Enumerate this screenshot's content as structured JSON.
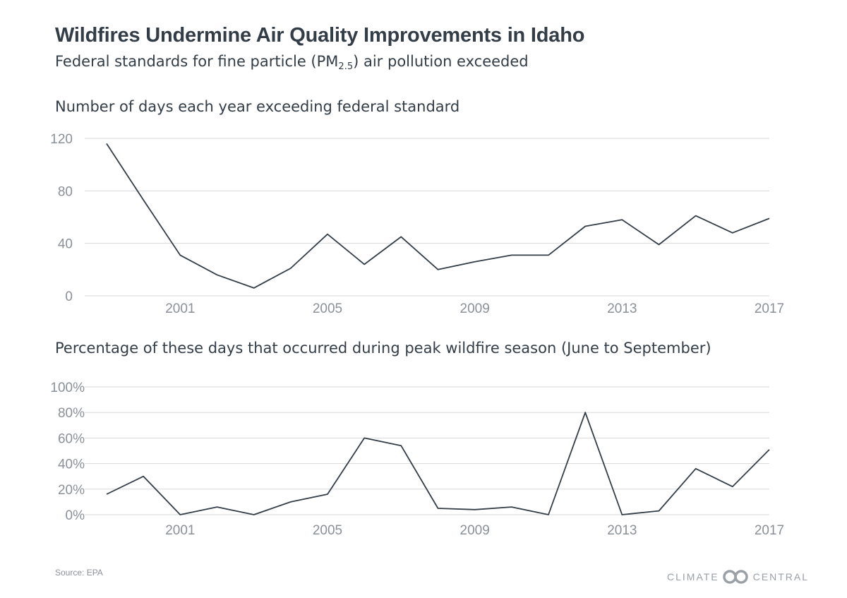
{
  "title": "Wildfires Undermine Air Quality Improvements in Idaho",
  "subtitle": {
    "before": "Federal standards for fine particle (PM",
    "sub": "2.5",
    "after": ") air pollution exceeded"
  },
  "source": "Source: EPA",
  "brand": {
    "left": "CLIMATE",
    "right": "CENTRAL",
    "logo": "interlocking-circles-logo"
  },
  "colors": {
    "line": "#333d47",
    "grid": "#d6d8da",
    "tick": "#8a9097",
    "text": "#333d47"
  },
  "chart_data": [
    {
      "type": "line",
      "title": "Number of days each year exceeding federal standard",
      "x": [
        1999,
        2000,
        2001,
        2002,
        2003,
        2004,
        2005,
        2006,
        2007,
        2008,
        2009,
        2010,
        2011,
        2012,
        2013,
        2014,
        2015,
        2016,
        2017
      ],
      "y": [
        116,
        73,
        31,
        16,
        6,
        21,
        47,
        24,
        45,
        20,
        26,
        31,
        31,
        53,
        58,
        39,
        61,
        48,
        59
      ],
      "xticks": [
        2001,
        2005,
        2009,
        2013,
        2017
      ],
      "xtick_labels": [
        "2001",
        "2005",
        "2009",
        "2013",
        "2017"
      ],
      "yticks": [
        0,
        40,
        80,
        120
      ],
      "ytick_labels": [
        "0",
        "40",
        "80",
        "120"
      ],
      "ylim": [
        0,
        120
      ],
      "xlim": [
        1999,
        2017
      ],
      "grid": true
    },
    {
      "type": "line",
      "title": "Percentage of these days that occurred during peak wildfire season (June to September)",
      "x": [
        1999,
        2000,
        2001,
        2002,
        2003,
        2004,
        2005,
        2006,
        2007,
        2008,
        2009,
        2010,
        2011,
        2012,
        2013,
        2014,
        2015,
        2016,
        2017
      ],
      "y": [
        16,
        30,
        0,
        6,
        0,
        10,
        16,
        60,
        54,
        5,
        4,
        6,
        0,
        80,
        0,
        3,
        36,
        22,
        51
      ],
      "xticks": [
        2001,
        2005,
        2009,
        2013,
        2017
      ],
      "xtick_labels": [
        "2001",
        "2005",
        "2009",
        "2013",
        "2017"
      ],
      "yticks": [
        0,
        20,
        40,
        60,
        80,
        100
      ],
      "ytick_labels": [
        "0%",
        "20%",
        "40%",
        "60%",
        "80%",
        "100%"
      ],
      "ylim": [
        0,
        100
      ],
      "xlim": [
        1999,
        2017
      ],
      "grid": true
    }
  ]
}
